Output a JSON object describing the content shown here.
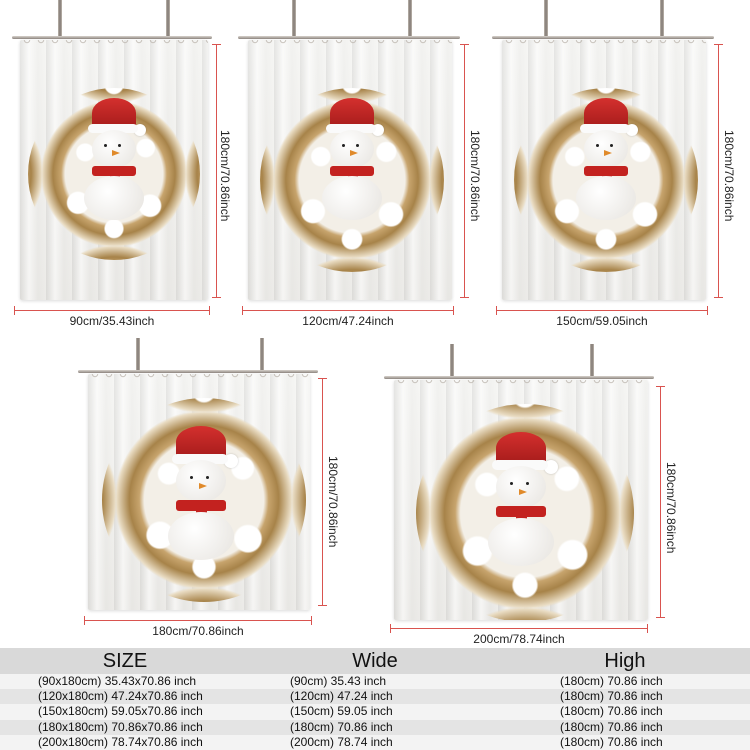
{
  "curtains": [
    {
      "height_label": "180cm/70.86inch",
      "width_label": "90cm/35.43inch"
    },
    {
      "height_label": "180cm/70.86inch",
      "width_label": "120cm/47.24inch"
    },
    {
      "height_label": "180cm/70.86inch",
      "width_label": "150cm/59.05inch"
    },
    {
      "height_label": "180cm/70.86inch",
      "width_label": "180cm/70.86inch"
    },
    {
      "height_label": "180cm/70.86inch",
      "width_label": "200cm/78.74inch"
    }
  ],
  "table": {
    "headers": [
      "SIZE",
      "Wide",
      "High"
    ],
    "rows": [
      [
        "(90x180cm) 35.43x70.86 inch",
        "(90cm) 35.43 inch",
        "(180cm) 70.86 inch"
      ],
      [
        "(120x180cm) 47.24x70.86 inch",
        "(120cm) 47.24 inch",
        "(180cm) 70.86 inch"
      ],
      [
        "(150x180cm) 59.05x70.86 inch",
        "(150cm) 59.05 inch",
        "(180cm) 70.86 inch"
      ],
      [
        "(180x180cm) 70.86x70.86 inch",
        "(180cm) 70.86 inch",
        "(180cm) 70.86 inch"
      ],
      [
        "(200x180cm) 78.74x70.86 inch",
        "(200cm) 78.74 inch",
        "(180cm) 70.86 inch"
      ]
    ]
  },
  "colors": {
    "dimension_line": "#d9534f",
    "hat": "#c3221f",
    "gold": "#c7a46d"
  }
}
